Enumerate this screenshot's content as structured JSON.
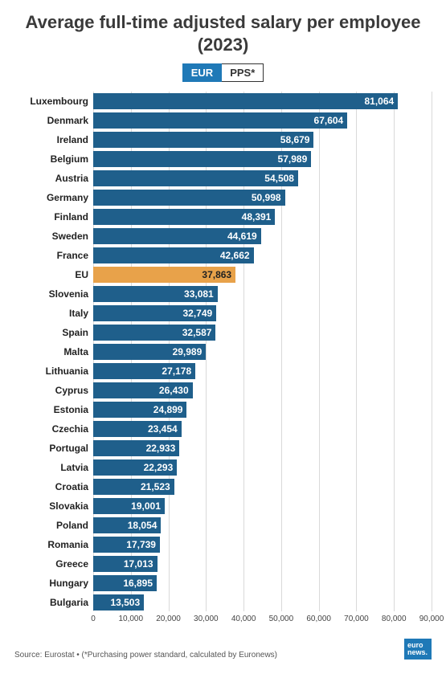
{
  "title": "Average full-time adjusted salary per employee (2023)",
  "tabs": {
    "active": "EUR",
    "inactive": "PPS*"
  },
  "chart": {
    "type": "bar",
    "xmax": 90000,
    "xtick_step": 10000,
    "xticks": [
      "0",
      "10,000",
      "20,000",
      "30,000",
      "40,000",
      "50,000",
      "60,000",
      "70,000",
      "80,000",
      "90,000"
    ],
    "bar_color": "#1f5f8b",
    "highlight_color": "#e8a24a",
    "grid_color": "#d9d9d9",
    "background": "#ffffff",
    "label_fontsize": 12,
    "value_fontsize": 12,
    "rows": [
      {
        "label": "Luxembourg",
        "value": 81064,
        "display": "81,064",
        "highlight": false
      },
      {
        "label": "Denmark",
        "value": 67604,
        "display": "67,604",
        "highlight": false
      },
      {
        "label": "Ireland",
        "value": 58679,
        "display": "58,679",
        "highlight": false
      },
      {
        "label": "Belgium",
        "value": 57989,
        "display": "57,989",
        "highlight": false
      },
      {
        "label": "Austria",
        "value": 54508,
        "display": "54,508",
        "highlight": false
      },
      {
        "label": "Germany",
        "value": 50998,
        "display": "50,998",
        "highlight": false
      },
      {
        "label": "Finland",
        "value": 48391,
        "display": "48,391",
        "highlight": false
      },
      {
        "label": "Sweden",
        "value": 44619,
        "display": "44,619",
        "highlight": false
      },
      {
        "label": "France",
        "value": 42662,
        "display": "42,662",
        "highlight": false
      },
      {
        "label": "EU",
        "value": 37863,
        "display": "37,863",
        "highlight": true
      },
      {
        "label": "Slovenia",
        "value": 33081,
        "display": "33,081",
        "highlight": false
      },
      {
        "label": "Italy",
        "value": 32749,
        "display": "32,749",
        "highlight": false
      },
      {
        "label": "Spain",
        "value": 32587,
        "display": "32,587",
        "highlight": false
      },
      {
        "label": "Malta",
        "value": 29989,
        "display": "29,989",
        "highlight": false
      },
      {
        "label": "Lithuania",
        "value": 27178,
        "display": "27,178",
        "highlight": false
      },
      {
        "label": "Cyprus",
        "value": 26430,
        "display": "26,430",
        "highlight": false
      },
      {
        "label": "Estonia",
        "value": 24899,
        "display": "24,899",
        "highlight": false
      },
      {
        "label": "Czechia",
        "value": 23454,
        "display": "23,454",
        "highlight": false
      },
      {
        "label": "Portugal",
        "value": 22933,
        "display": "22,933",
        "highlight": false
      },
      {
        "label": "Latvia",
        "value": 22293,
        "display": "22,293",
        "highlight": false
      },
      {
        "label": "Croatia",
        "value": 21523,
        "display": "21,523",
        "highlight": false
      },
      {
        "label": "Slovakia",
        "value": 19001,
        "display": "19,001",
        "highlight": false
      },
      {
        "label": "Poland",
        "value": 18054,
        "display": "18,054",
        "highlight": false
      },
      {
        "label": "Romania",
        "value": 17739,
        "display": "17,739",
        "highlight": false
      },
      {
        "label": "Greece",
        "value": 17013,
        "display": "17,013",
        "highlight": false
      },
      {
        "label": "Hungary",
        "value": 16895,
        "display": "16,895",
        "highlight": false
      },
      {
        "label": "Bulgaria",
        "value": 13503,
        "display": "13,503",
        "highlight": false
      }
    ]
  },
  "source": "Source: Eurostat • (*Purchasing power standard, calculated by Euronews)",
  "logo_line1": "euro",
  "logo_line2": "news."
}
